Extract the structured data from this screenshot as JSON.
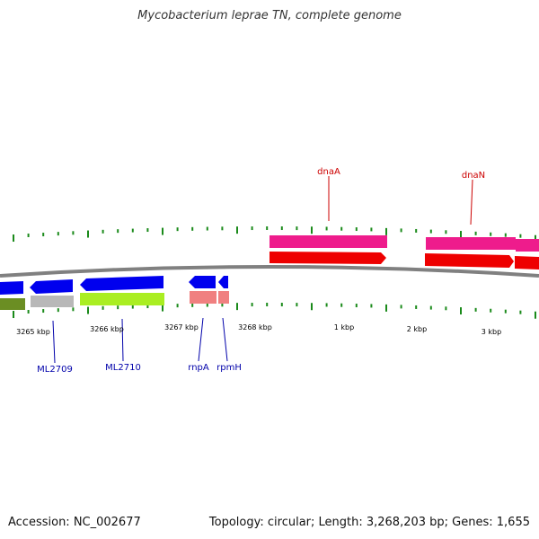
{
  "title": "Mycobacterium leprae TN, complete genome",
  "footer": {
    "accession": "Accession: NC_002677",
    "summary": "Topology: circular; Length: 3,268,203 bp; Genes: 1,655"
  },
  "colors": {
    "backbone": "#808080",
    "tick": "#1a8a1a",
    "gene_blue": "#0000ee",
    "gene_red": "#ee0000",
    "gene_pink": "#ee1c8c",
    "gene_lime": "#aaee22",
    "gene_olive": "#6b8e23",
    "gene_gray": "#b8b8b8",
    "gene_salmon": "#f08080",
    "label_blue": "#0000aa",
    "label_red": "#cc0000"
  },
  "scale_labels": [
    "3265 kbp",
    "3266 kbp",
    "3267 kbp",
    "3268 kbp",
    "1 kbp",
    "2 kbp",
    "3 kbp"
  ],
  "gene_labels": [
    {
      "text": "ML2709",
      "color": "blue"
    },
    {
      "text": "ML2710",
      "color": "blue"
    },
    {
      "text": "rnpA",
      "color": "blue"
    },
    {
      "text": "rpmH",
      "color": "blue"
    },
    {
      "text": "dnaA",
      "color": "red"
    },
    {
      "text": "dnaN",
      "color": "red"
    }
  ]
}
